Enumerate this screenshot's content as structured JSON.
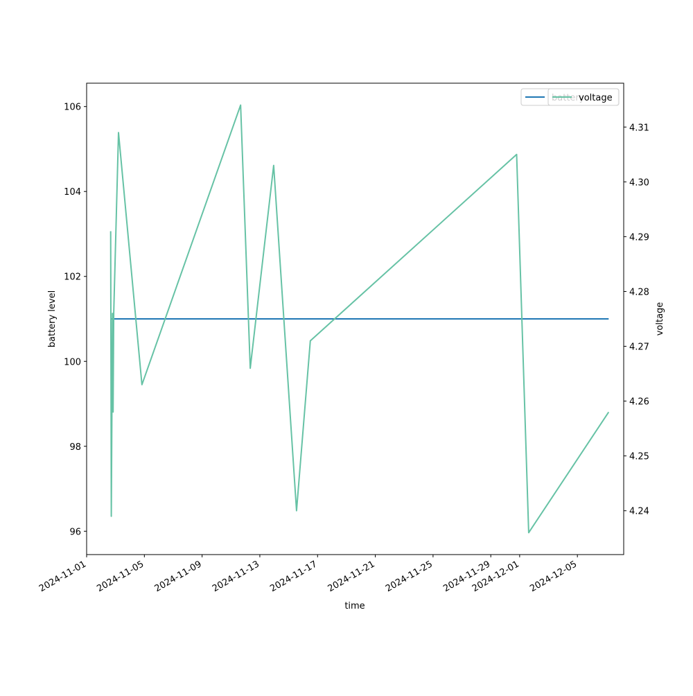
{
  "chart_data": {
    "type": "line",
    "title": "",
    "xlabel": "time",
    "ylabel": "battery level",
    "ylabel_right": "voltage",
    "x_ticks": [
      "2024-11-01",
      "2024-11-05",
      "2024-11-09",
      "2024-11-13",
      "2024-11-17",
      "2024-11-21",
      "2024-11-25",
      "2024-11-29",
      "2024-12-01",
      "2024-12-05"
    ],
    "y_ticks_left": [
      "96",
      "98",
      "100",
      "102",
      "104",
      "106"
    ],
    "y_ticks_right": [
      "4.24",
      "4.25",
      "4.26",
      "4.27",
      "4.28",
      "4.29",
      "4.30",
      "4.31"
    ],
    "ylim_left": [
      95.45,
      106.55
    ],
    "ylim_right": [
      4.232,
      4.318
    ],
    "xlim": [
      "2024-11-01T00:00",
      "2024-12-08T05:00"
    ],
    "grid": false,
    "legend_position": "top-right",
    "series": [
      {
        "name": "battery",
        "axis": "left",
        "color": "#1f77b4",
        "points": [
          {
            "x": "2024-11-02T16:00",
            "y": 101
          },
          {
            "x": "2024-12-07T04:00",
            "y": 101
          }
        ]
      },
      {
        "name": "voltage",
        "axis": "right",
        "color": "#66c2a5",
        "points": [
          {
            "x": "2024-11-02T16:00",
            "y": 4.291
          },
          {
            "x": "2024-11-02T17:00",
            "y": 4.239
          },
          {
            "x": "2024-11-02T19:00",
            "y": 4.276
          },
          {
            "x": "2024-11-02T20:00",
            "y": 4.258
          },
          {
            "x": "2024-11-02T21:00",
            "y": 4.276
          },
          {
            "x": "2024-11-03T05:00",
            "y": 4.309
          },
          {
            "x": "2024-11-04T20:00",
            "y": 4.263
          },
          {
            "x": "2024-11-11T16:00",
            "y": 4.314
          },
          {
            "x": "2024-11-12T08:00",
            "y": 4.266
          },
          {
            "x": "2024-11-13T23:00",
            "y": 4.303
          },
          {
            "x": "2024-11-15T13:00",
            "y": 4.24
          },
          {
            "x": "2024-11-16T12:00",
            "y": 4.271
          },
          {
            "x": "2024-11-30T19:00",
            "y": 4.305
          },
          {
            "x": "2024-12-01T15:00",
            "y": 4.236
          },
          {
            "x": "2024-12-07T04:00",
            "y": 4.258
          }
        ]
      }
    ],
    "legend": [
      {
        "label": "battery",
        "color": "#1f77b4"
      },
      {
        "label": "voltage",
        "color": "#66c2a5"
      }
    ]
  }
}
